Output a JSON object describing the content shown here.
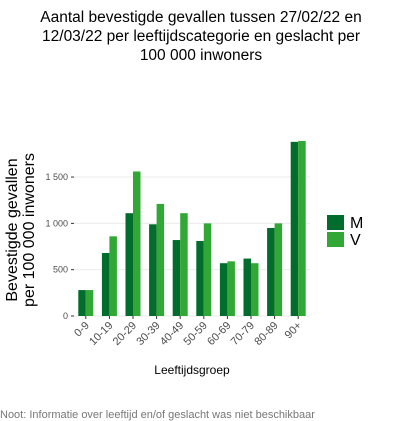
{
  "title_lines": [
    "Aantal bevestigde gevallen tussen 27/02/22 en",
    "12/03/22 per leeftijdscategorie en geslacht per",
    "100 000 inwoners"
  ],
  "footnote": "Noot: Informatie over leeftijd en/of geslacht was niet beschikbaar",
  "colors": {
    "M": "#006d2c",
    "V": "#31a835",
    "grid": "#ebebeb",
    "axis": "#333333"
  },
  "chart_data": {
    "type": "bar",
    "title": "Aantal bevestigde gevallen tussen 27/02/22 en 12/03/22 per leeftijdscategorie en geslacht per 100 000 inwoners",
    "xlabel": "Leeftijdsgroep",
    "ylabel_lines": [
      "Bevestigde gevallen",
      "per 100 000 inwoners"
    ],
    "categories": [
      "0-9",
      "10-19",
      "20-29",
      "30-39",
      "40-49",
      "50-59",
      "60-69",
      "70-79",
      "80-89",
      "90+"
    ],
    "series": [
      {
        "name": "M",
        "values": [
          280,
          680,
          1110,
          990,
          820,
          810,
          570,
          620,
          950,
          1880
        ]
      },
      {
        "name": "V",
        "values": [
          280,
          860,
          1560,
          1210,
          1110,
          1000,
          590,
          570,
          1000,
          1890
        ]
      }
    ],
    "ylim": [
      0,
      1900
    ],
    "yticks": [
      0,
      500,
      1000,
      1500
    ],
    "ytick_labels": [
      "0",
      "500",
      "1 000",
      "1 500"
    ],
    "grid": true,
    "legend": "right"
  }
}
